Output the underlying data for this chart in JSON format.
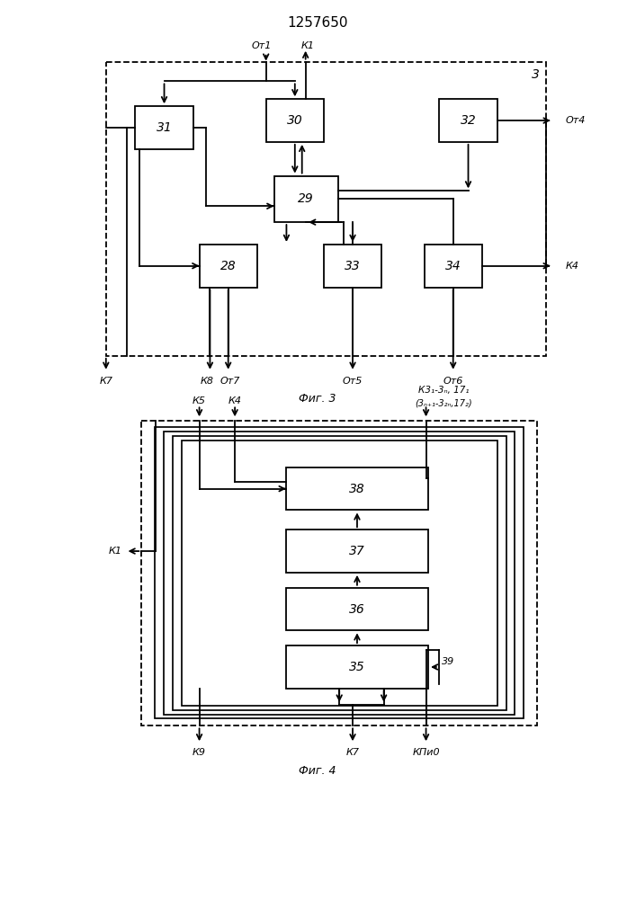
{
  "title": "1257650",
  "fig3_caption": "Фиг. 3",
  "fig4_caption": "Фиг. 4",
  "lw": 1.3
}
